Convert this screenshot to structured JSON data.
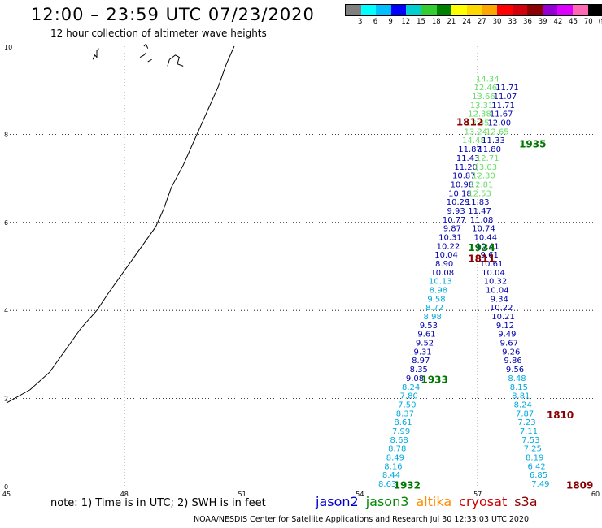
{
  "header": {
    "title": "12:00 – 23:59 UTC 07/23/2020",
    "subtitle": "12 hour collection of altimeter wave heights"
  },
  "colorbar": {
    "colors": [
      "#808080",
      "#00ffff",
      "#00bfff",
      "#0000ff",
      "#00ced1",
      "#32cd32",
      "#008000",
      "#ffff00",
      "#ffd700",
      "#ffa500",
      "#ff0000",
      "#d2000d",
      "#8b0000",
      "#9400d3",
      "#dd00ff",
      "#ff69b4",
      "#000000"
    ],
    "labels": [
      "3",
      "6",
      "9",
      "12",
      "15",
      "18",
      "21",
      "24",
      "27",
      "30",
      "33",
      "36",
      "39",
      "42",
      "45",
      "70",
      "(ft)"
    ]
  },
  "axes": {
    "x_ticks": [
      "45",
      "48",
      "51",
      "54",
      "57",
      "60"
    ],
    "y_ticks": [
      "0",
      "2",
      "4",
      "6",
      "8",
      "10"
    ]
  },
  "map_data": {
    "type": "altimeter_track_map",
    "tracks": [
      {
        "color": "#00aadd",
        "points": [
          {
            "lon": 54.7,
            "lat": 0.0,
            "swh": "8.63"
          },
          {
            "lon": 54.8,
            "lat": 0.2,
            "swh": "8.44"
          },
          {
            "lon": 54.85,
            "lat": 0.4,
            "swh": "8.16"
          },
          {
            "lon": 54.9,
            "lat": 0.6,
            "swh": "8.49"
          },
          {
            "lon": 54.95,
            "lat": 0.8,
            "swh": "8.78"
          },
          {
            "lon": 55.0,
            "lat": 1.0,
            "swh": "8.68"
          },
          {
            "lon": 55.05,
            "lat": 1.2,
            "swh": "7.99"
          },
          {
            "lon": 55.1,
            "lat": 1.4,
            "swh": "8.61"
          },
          {
            "lon": 55.15,
            "lat": 1.6,
            "swh": "8.37"
          },
          {
            "lon": 55.2,
            "lat": 1.8,
            "swh": "7.50"
          },
          {
            "lon": 55.25,
            "lat": 2.0,
            "swh": "7.80"
          },
          {
            "lon": 55.3,
            "lat": 2.2,
            "swh": "8.24"
          }
        ]
      },
      {
        "color": "#0000aa",
        "points": [
          {
            "lon": 55.4,
            "lat": 2.4,
            "swh": "9.08"
          },
          {
            "lon": 55.5,
            "lat": 2.6,
            "swh": "8.35"
          },
          {
            "lon": 55.55,
            "lat": 2.8,
            "swh": "8.97"
          },
          {
            "lon": 55.6,
            "lat": 3.0,
            "swh": "9.31"
          },
          {
            "lon": 55.65,
            "lat": 3.2,
            "swh": "9.52"
          },
          {
            "lon": 55.7,
            "lat": 3.4,
            "swh": "9.61"
          },
          {
            "lon": 55.75,
            "lat": 3.6,
            "swh": "9.53"
          }
        ]
      },
      {
        "color": "#00aadd",
        "points": [
          {
            "lon": 55.85,
            "lat": 3.8,
            "swh": "8.98"
          },
          {
            "lon": 55.9,
            "lat": 4.0,
            "swh": "8.72"
          },
          {
            "lon": 55.95,
            "lat": 4.2,
            "swh": "9.58"
          },
          {
            "lon": 56.0,
            "lat": 4.4,
            "swh": "8.98"
          },
          {
            "lon": 56.05,
            "lat": 4.6,
            "swh": "10.13"
          }
        ]
      },
      {
        "color": "#0000aa",
        "points": [
          {
            "lon": 56.1,
            "lat": 4.8,
            "swh": "10.08"
          },
          {
            "lon": 56.15,
            "lat": 5.0,
            "swh": "8.90"
          },
          {
            "lon": 56.2,
            "lat": 5.2,
            "swh": "10.04"
          },
          {
            "lon": 56.25,
            "lat": 5.4,
            "swh": "10.22"
          },
          {
            "lon": 56.3,
            "lat": 5.6,
            "swh": "10.31"
          },
          {
            "lon": 56.35,
            "lat": 5.8,
            "swh": "9.87"
          },
          {
            "lon": 56.4,
            "lat": 6.0,
            "swh": "10.77"
          },
          {
            "lon": 56.45,
            "lat": 6.2,
            "swh": "9.93"
          },
          {
            "lon": 56.5,
            "lat": 6.4,
            "swh": "10.29"
          },
          {
            "lon": 56.55,
            "lat": 6.6,
            "swh": "10.18"
          },
          {
            "lon": 56.6,
            "lat": 6.8,
            "swh": "10.98"
          },
          {
            "lon": 56.65,
            "lat": 7.0,
            "swh": "10.87"
          },
          {
            "lon": 56.7,
            "lat": 7.2,
            "swh": "11.20"
          },
          {
            "lon": 56.75,
            "lat": 7.4,
            "swh": "11.43"
          },
          {
            "lon": 56.8,
            "lat": 7.6,
            "swh": "11.87"
          }
        ]
      },
      {
        "color": "#66dd66",
        "points": [
          {
            "lon": 56.9,
            "lat": 7.8,
            "swh": "14.48"
          },
          {
            "lon": 56.95,
            "lat": 8.0,
            "swh": "13.24"
          },
          {
            "lon": 57.0,
            "lat": 8.2,
            "swh": "13.35"
          },
          {
            "lon": 57.05,
            "lat": 8.4,
            "swh": "12.38"
          },
          {
            "lon": 57.1,
            "lat": 8.6,
            "swh": "13.31"
          },
          {
            "lon": 57.15,
            "lat": 8.8,
            "swh": "13.66"
          },
          {
            "lon": 57.2,
            "lat": 9.0,
            "swh": "12.46"
          },
          {
            "lon": 57.25,
            "lat": 9.2,
            "swh": "14.34"
          }
        ]
      },
      {
        "color": "#00aadd",
        "points": [
          {
            "lon": 58.6,
            "lat": 0.0,
            "swh": "7.49"
          },
          {
            "lon": 58.55,
            "lat": 0.2,
            "swh": "6.85"
          },
          {
            "lon": 58.5,
            "lat": 0.4,
            "swh": "6.42"
          },
          {
            "lon": 58.45,
            "lat": 0.6,
            "swh": "8.19"
          },
          {
            "lon": 58.4,
            "lat": 0.8,
            "swh": "7.25"
          },
          {
            "lon": 58.35,
            "lat": 1.0,
            "swh": "7.53"
          },
          {
            "lon": 58.3,
            "lat": 1.2,
            "swh": "7.11"
          },
          {
            "lon": 58.25,
            "lat": 1.4,
            "swh": "7.23"
          },
          {
            "lon": 58.2,
            "lat": 1.6,
            "swh": "7.87"
          },
          {
            "lon": 58.15,
            "lat": 1.8,
            "swh": "8.24"
          },
          {
            "lon": 58.1,
            "lat": 2.0,
            "swh": "8.81"
          },
          {
            "lon": 58.05,
            "lat": 2.2,
            "swh": "8.15"
          },
          {
            "lon": 58.0,
            "lat": 2.4,
            "swh": "8.48"
          }
        ]
      },
      {
        "color": "#0000aa",
        "points": [
          {
            "lon": 57.95,
            "lat": 2.6,
            "swh": "9.56"
          },
          {
            "lon": 57.9,
            "lat": 2.8,
            "swh": "9.86"
          },
          {
            "lon": 57.85,
            "lat": 3.0,
            "swh": "9.26"
          },
          {
            "lon": 57.8,
            "lat": 3.2,
            "swh": "9.67"
          },
          {
            "lon": 57.75,
            "lat": 3.4,
            "swh": "9.49"
          },
          {
            "lon": 57.7,
            "lat": 3.6,
            "swh": "9.12"
          },
          {
            "lon": 57.65,
            "lat": 3.8,
            "swh": "10.21"
          },
          {
            "lon": 57.6,
            "lat": 4.0,
            "swh": "10.22"
          },
          {
            "lon": 57.55,
            "lat": 4.2,
            "swh": "9.34"
          },
          {
            "lon": 57.5,
            "lat": 4.4,
            "swh": "10.04"
          },
          {
            "lon": 57.45,
            "lat": 4.6,
            "swh": "10.32"
          },
          {
            "lon": 57.4,
            "lat": 4.8,
            "swh": "10.04"
          },
          {
            "lon": 57.35,
            "lat": 5.0,
            "swh": "10.61"
          },
          {
            "lon": 57.3,
            "lat": 5.2,
            "swh": "9.61"
          },
          {
            "lon": 57.25,
            "lat": 5.4,
            "swh": "10.41"
          },
          {
            "lon": 57.2,
            "lat": 5.6,
            "swh": "10.44"
          },
          {
            "lon": 57.15,
            "lat": 5.8,
            "swh": "10.74"
          },
          {
            "lon": 57.1,
            "lat": 6.0,
            "swh": "11.08"
          },
          {
            "lon": 57.05,
            "lat": 6.2,
            "swh": "11.47"
          },
          {
            "lon": 57.0,
            "lat": 6.4,
            "swh": "11.83"
          }
        ]
      },
      {
        "color": "#66dd66",
        "points": [
          {
            "lon": 57.05,
            "lat": 6.6,
            "swh": "12.53"
          },
          {
            "lon": 57.1,
            "lat": 6.8,
            "swh": "12.81"
          },
          {
            "lon": 57.15,
            "lat": 7.0,
            "swh": "12.30"
          },
          {
            "lon": 57.2,
            "lat": 7.2,
            "swh": "13.03"
          },
          {
            "lon": 57.25,
            "lat": 7.4,
            "swh": "12.71"
          }
        ]
      },
      {
        "color": "#0000aa",
        "points": [
          {
            "lon": 57.3,
            "lat": 7.6,
            "swh": "11.80"
          },
          {
            "lon": 57.4,
            "lat": 7.8,
            "swh": "11.33"
          }
        ]
      },
      {
        "color": "#66dd66",
        "points": [
          {
            "lon": 57.5,
            "lat": 8.0,
            "swh": "12.65"
          }
        ]
      },
      {
        "color": "#0000aa",
        "points": [
          {
            "lon": 57.55,
            "lat": 8.2,
            "swh": "12.00"
          },
          {
            "lon": 57.6,
            "lat": 8.4,
            "swh": "11.67"
          },
          {
            "lon": 57.65,
            "lat": 8.6,
            "swh": "11.71"
          },
          {
            "lon": 57.7,
            "lat": 8.8,
            "swh": "11.07"
          },
          {
            "lon": 57.75,
            "lat": 9.0,
            "swh": "11.71"
          }
        ]
      }
    ],
    "time_labels": [
      {
        "text": "1812",
        "lon": 56.8,
        "lat": 8.2,
        "color": "#8b0000"
      },
      {
        "text": "1935",
        "lon": 58.4,
        "lat": 7.7,
        "color": "#007700"
      },
      {
        "text": "1934",
        "lon": 57.1,
        "lat": 5.35,
        "color": "#007700"
      },
      {
        "text": "1811",
        "lon": 57.1,
        "lat": 5.1,
        "color": "#8b0000"
      },
      {
        "text": "1933",
        "lon": 55.9,
        "lat": 2.35,
        "color": "#007700"
      },
      {
        "text": "1810",
        "lon": 59.1,
        "lat": 1.55,
        "color": "#8b0000"
      },
      {
        "text": "1932",
        "lon": 55.2,
        "lat": -0.05,
        "color": "#007700"
      },
      {
        "text": "1809",
        "lon": 59.6,
        "lat": -0.05,
        "color": "#8b0000"
      }
    ],
    "coastline": [
      [
        45.0,
        1.9
      ],
      [
        45.6,
        2.2
      ],
      [
        46.1,
        2.6
      ],
      [
        46.5,
        3.1
      ],
      [
        46.9,
        3.6
      ],
      [
        47.3,
        4.0
      ],
      [
        47.6,
        4.4
      ],
      [
        48.0,
        4.9
      ],
      [
        48.4,
        5.4
      ],
      [
        48.8,
        5.9
      ],
      [
        49.0,
        6.3
      ],
      [
        49.2,
        6.8
      ],
      [
        49.5,
        7.3
      ],
      [
        49.8,
        7.9
      ],
      [
        50.1,
        8.5
      ],
      [
        50.4,
        9.1
      ],
      [
        50.6,
        9.6
      ],
      [
        50.8,
        10.0
      ]
    ],
    "islands": [
      [
        [
          47.2,
          9.7
        ],
        [
          47.25,
          9.8
        ],
        [
          47.3,
          9.75
        ],
        [
          47.3,
          9.9
        ],
        [
          47.35,
          9.95
        ]
      ],
      [
        [
          48.4,
          9.75
        ],
        [
          48.5,
          9.8
        ],
        [
          48.55,
          9.85
        ]
      ],
      [
        [
          48.6,
          9.65
        ],
        [
          48.7,
          9.7
        ]
      ],
      [
        [
          49.1,
          9.55
        ],
        [
          49.15,
          9.7
        ],
        [
          49.3,
          9.8
        ],
        [
          49.4,
          9.75
        ],
        [
          49.35,
          9.6
        ],
        [
          49.5,
          9.55
        ]
      ],
      [
        [
          48.5,
          10.0
        ],
        [
          48.55,
          10.05
        ],
        [
          48.6,
          9.95
        ]
      ]
    ]
  },
  "footer": {
    "note": "note:  1) Time is in UTC;  2) SWH is in feet",
    "satellites": [
      {
        "name": "jason2",
        "color": "#0000cc"
      },
      {
        "name": "jason3",
        "color": "#008800"
      },
      {
        "name": "altika",
        "color": "#ff8c00"
      },
      {
        "name": "cryosat",
        "color": "#cc0000"
      },
      {
        "name": "s3a",
        "color": "#8b0000"
      }
    ],
    "credit": "NOAA/NESDIS Center for Satellite Applications and Research     Jul 30 12:33:03 UTC 2020"
  }
}
